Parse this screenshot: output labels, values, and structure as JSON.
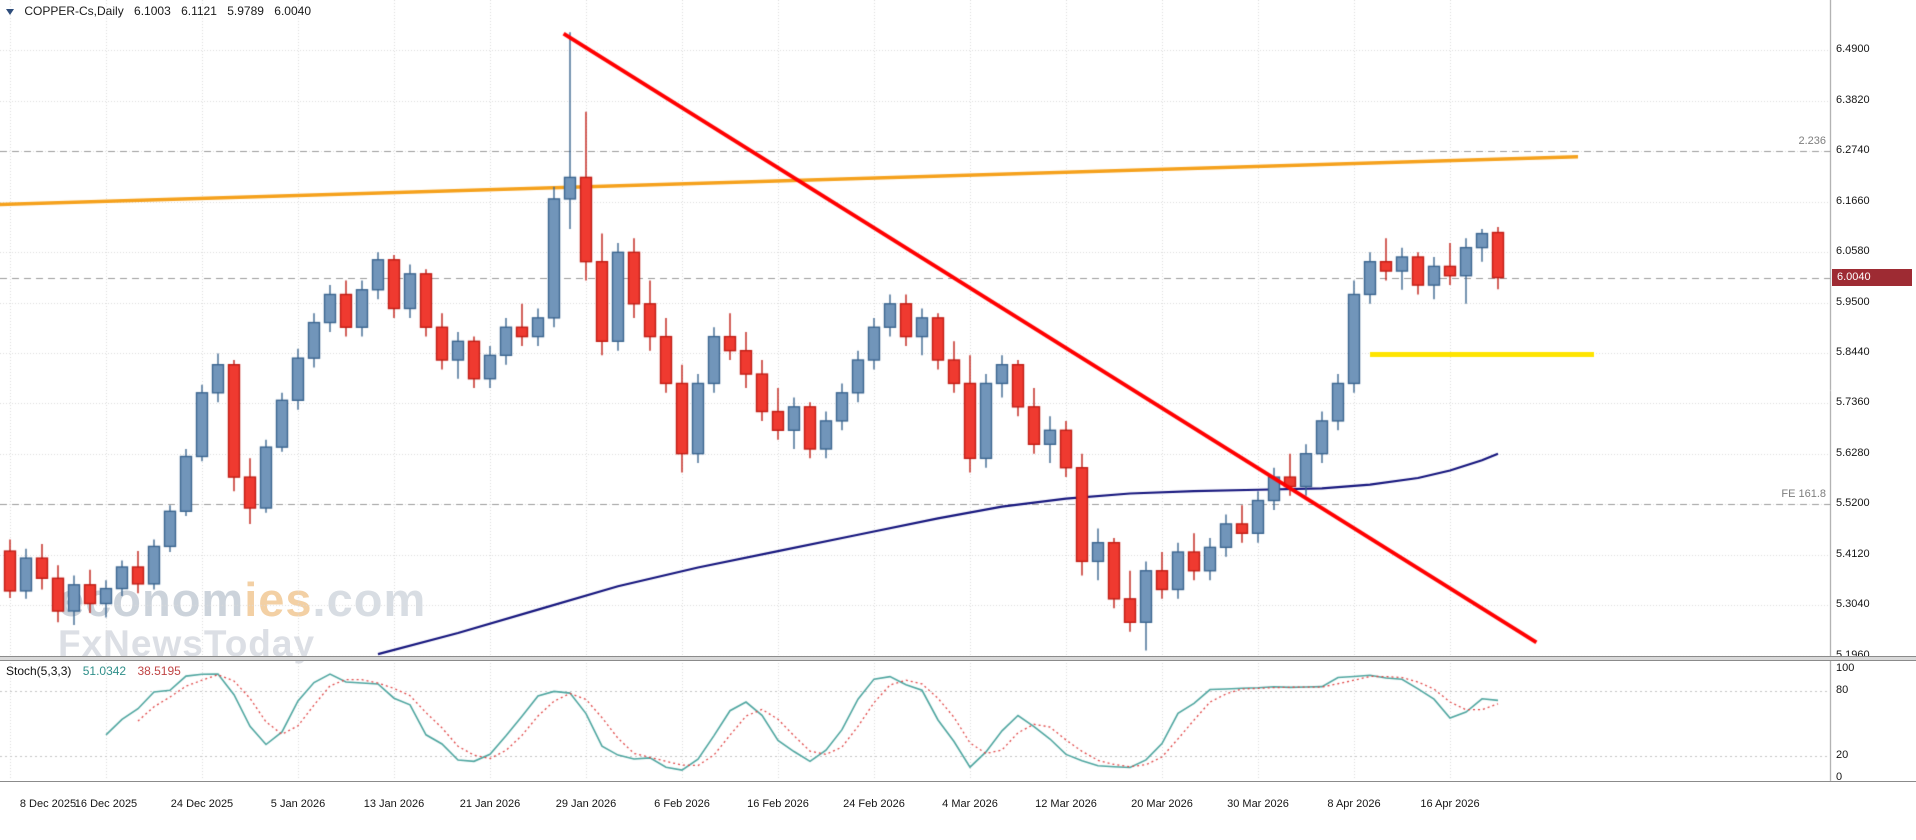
{
  "header": {
    "icon": "triangle-down",
    "title": "COPPER-Cs,Daily",
    "open": "6.1003",
    "high": "6.1121",
    "low": "5.9789",
    "close": "6.0040"
  },
  "watermark": {
    "part1": "econom",
    "part2": "ies",
    "part3": ".com",
    "line2": "FxNewsToday"
  },
  "indicator_panel": {
    "label": "Stoch(5,3,3)",
    "value_main": "51.0342",
    "value_signal": "38.5195",
    "axis_labels": [
      "100",
      "80",
      "20",
      "0"
    ],
    "levels": [
      80,
      20
    ]
  },
  "chart_data": {
    "type": "candlestick",
    "title": "COPPER-Cs,Daily",
    "symbol": "COPPER-Cs",
    "timeframe": "Daily",
    "y_axis": {
      "min": 5.196,
      "max": 6.49,
      "tick_step": 0.108
    },
    "y_ticks": [
      "6.4900",
      "6.3820",
      "6.2740",
      "6.1660",
      "6.0580",
      "5.9500",
      "5.8440",
      "5.7360",
      "5.6280",
      "5.5200",
      "5.4120",
      "5.3040",
      "5.1960"
    ],
    "x_ticks": [
      {
        "bar": 0,
        "label": "8 Dec 2025"
      },
      {
        "bar": 6,
        "label": "16 Dec 2025"
      },
      {
        "bar": 12,
        "label": "24 Dec 2025"
      },
      {
        "bar": 18,
        "label": "5 Jan 2026"
      },
      {
        "bar": 24,
        "label": "13 Jan 2026"
      },
      {
        "bar": 30,
        "label": "21 Jan 2026"
      },
      {
        "bar": 36,
        "label": "29 Jan 2026"
      },
      {
        "bar": 42,
        "label": "6 Feb 2026"
      },
      {
        "bar": 48,
        "label": "16 Feb 2026"
      },
      {
        "bar": 54,
        "label": "24 Feb 2026"
      },
      {
        "bar": 60,
        "label": "4 Mar 2026"
      },
      {
        "bar": 66,
        "label": "12 Mar 2026"
      },
      {
        "bar": 72,
        "label": "20 Mar 2026"
      },
      {
        "bar": 78,
        "label": "30 Mar 2026"
      },
      {
        "bar": 84,
        "label": "8 Apr 2026"
      },
      {
        "bar": 90,
        "label": "16 Apr 2026"
      }
    ],
    "current_price": 6.004,
    "current_price_label": "6.0040",
    "last_ohlc": {
      "open": 6.1003,
      "high": 6.1121,
      "low": 5.9789,
      "close": 6.004
    },
    "levels": [
      {
        "label": "2.236",
        "price": 6.274
      },
      {
        "label": "FE 161.8",
        "price": 5.52
      }
    ],
    "ohlc": [
      [
        5.42,
        5.445,
        5.32,
        5.335
      ],
      [
        5.335,
        5.425,
        5.318,
        5.405
      ],
      [
        5.405,
        5.435,
        5.338,
        5.362
      ],
      [
        5.362,
        5.39,
        5.268,
        5.292
      ],
      [
        5.292,
        5.368,
        5.262,
        5.348
      ],
      [
        5.348,
        5.38,
        5.288,
        5.308
      ],
      [
        5.308,
        5.358,
        5.278,
        5.34
      ],
      [
        5.34,
        5.4,
        5.324,
        5.386
      ],
      [
        5.386,
        5.42,
        5.33,
        5.35
      ],
      [
        5.35,
        5.445,
        5.338,
        5.43
      ],
      [
        5.43,
        5.518,
        5.418,
        5.505
      ],
      [
        5.505,
        5.638,
        5.495,
        5.622
      ],
      [
        5.622,
        5.775,
        5.612,
        5.758
      ],
      [
        5.758,
        5.842,
        5.738,
        5.818
      ],
      [
        5.818,
        5.828,
        5.548,
        5.578
      ],
      [
        5.578,
        5.618,
        5.478,
        5.512
      ],
      [
        5.512,
        5.658,
        5.502,
        5.642
      ],
      [
        5.642,
        5.758,
        5.632,
        5.742
      ],
      [
        5.742,
        5.852,
        5.722,
        5.832
      ],
      [
        5.832,
        5.928,
        5.812,
        5.908
      ],
      [
        5.908,
        5.988,
        5.888,
        5.968
      ],
      [
        5.968,
        5.998,
        5.878,
        5.898
      ],
      [
        5.898,
        5.998,
        5.878,
        5.978
      ],
      [
        5.978,
        6.058,
        5.958,
        6.042
      ],
      [
        6.042,
        6.052,
        5.918,
        5.938
      ],
      [
        5.938,
        6.032,
        5.918,
        6.012
      ],
      [
        6.012,
        6.022,
        5.878,
        5.898
      ],
      [
        5.898,
        5.928,
        5.808,
        5.828
      ],
      [
        5.828,
        5.888,
        5.788,
        5.868
      ],
      [
        5.868,
        5.878,
        5.768,
        5.788
      ],
      [
        5.788,
        5.858,
        5.768,
        5.838
      ],
      [
        5.838,
        5.918,
        5.818,
        5.898
      ],
      [
        5.898,
        5.948,
        5.858,
        5.878
      ],
      [
        5.878,
        5.938,
        5.858,
        5.918
      ],
      [
        5.918,
        6.198,
        5.898,
        6.172
      ],
      [
        6.172,
        6.528,
        6.108,
        6.218
      ],
      [
        6.218,
        6.358,
        5.998,
        6.038
      ],
      [
        6.038,
        6.098,
        5.838,
        5.868
      ],
      [
        5.868,
        6.078,
        5.848,
        6.058
      ],
      [
        6.058,
        6.088,
        5.918,
        5.948
      ],
      [
        5.948,
        5.998,
        5.848,
        5.878
      ],
      [
        5.878,
        5.918,
        5.758,
        5.778
      ],
      [
        5.778,
        5.818,
        5.588,
        5.628
      ],
      [
        5.628,
        5.798,
        5.608,
        5.778
      ],
      [
        5.778,
        5.898,
        5.758,
        5.878
      ],
      [
        5.878,
        5.928,
        5.828,
        5.848
      ],
      [
        5.848,
        5.888,
        5.768,
        5.798
      ],
      [
        5.798,
        5.828,
        5.698,
        5.718
      ],
      [
        5.718,
        5.768,
        5.658,
        5.678
      ],
      [
        5.678,
        5.748,
        5.638,
        5.728
      ],
      [
        5.728,
        5.738,
        5.618,
        5.638
      ],
      [
        5.638,
        5.718,
        5.618,
        5.698
      ],
      [
        5.698,
        5.778,
        5.678,
        5.758
      ],
      [
        5.758,
        5.848,
        5.738,
        5.828
      ],
      [
        5.828,
        5.918,
        5.808,
        5.898
      ],
      [
        5.898,
        5.968,
        5.878,
        5.948
      ],
      [
        5.948,
        5.968,
        5.858,
        5.878
      ],
      [
        5.878,
        5.938,
        5.838,
        5.918
      ],
      [
        5.918,
        5.928,
        5.808,
        5.828
      ],
      [
        5.828,
        5.868,
        5.758,
        5.778
      ],
      [
        5.778,
        5.838,
        5.588,
        5.618
      ],
      [
        5.618,
        5.798,
        5.598,
        5.778
      ],
      [
        5.778,
        5.838,
        5.748,
        5.818
      ],
      [
        5.818,
        5.828,
        5.708,
        5.728
      ],
      [
        5.728,
        5.768,
        5.628,
        5.648
      ],
      [
        5.648,
        5.708,
        5.608,
        5.678
      ],
      [
        5.678,
        5.698,
        5.578,
        5.598
      ],
      [
        5.598,
        5.628,
        5.368,
        5.398
      ],
      [
        5.398,
        5.468,
        5.358,
        5.438
      ],
      [
        5.438,
        5.448,
        5.298,
        5.318
      ],
      [
        5.318,
        5.378,
        5.248,
        5.268
      ],
      [
        5.268,
        5.398,
        5.208,
        5.378
      ],
      [
        5.378,
        5.418,
        5.318,
        5.338
      ],
      [
        5.338,
        5.438,
        5.318,
        5.418
      ],
      [
        5.418,
        5.458,
        5.358,
        5.378
      ],
      [
        5.378,
        5.448,
        5.358,
        5.428
      ],
      [
        5.428,
        5.498,
        5.408,
        5.478
      ],
      [
        5.478,
        5.518,
        5.438,
        5.458
      ],
      [
        5.458,
        5.548,
        5.438,
        5.528
      ],
      [
        5.528,
        5.598,
        5.508,
        5.578
      ],
      [
        5.578,
        5.628,
        5.538,
        5.558
      ],
      [
        5.558,
        5.648,
        5.538,
        5.628
      ],
      [
        5.628,
        5.718,
        5.608,
        5.698
      ],
      [
        5.698,
        5.798,
        5.678,
        5.778
      ],
      [
        5.778,
        5.998,
        5.758,
        5.968
      ],
      [
        5.968,
        6.058,
        5.948,
        6.038
      ],
      [
        6.038,
        6.088,
        5.998,
        6.018
      ],
      [
        6.018,
        6.068,
        5.978,
        6.048
      ],
      [
        6.048,
        6.058,
        5.968,
        5.988
      ],
      [
        5.988,
        6.048,
        5.958,
        6.028
      ],
      [
        6.028,
        6.078,
        5.988,
        6.008
      ],
      [
        6.008,
        6.088,
        5.948,
        6.068
      ],
      [
        6.068,
        6.108,
        6.038,
        6.098
      ],
      [
        6.1003,
        6.1121,
        5.9789,
        6.004
      ]
    ],
    "overlays": {
      "red_trendline": {
        "from_bar": 34.6,
        "from_price": 6.525,
        "to_bar": 95.4,
        "to_price": 5.225,
        "color": "#ff0000"
      },
      "orange_trendline": {
        "from_bar": -0.7,
        "from_price": 6.16,
        "to_bar": 98.0,
        "to_price": 6.262,
        "color": "#f5a11c"
      },
      "yellow_hline": {
        "price": 5.84,
        "from_bar": 85,
        "to_bar": 99,
        "color": "#ffe400"
      },
      "navy_ma": {
        "color": "#15157d",
        "points": [
          [
            23,
            5.2
          ],
          [
            28,
            5.245
          ],
          [
            33,
            5.295
          ],
          [
            38,
            5.345
          ],
          [
            43,
            5.385
          ],
          [
            48,
            5.42
          ],
          [
            53,
            5.455
          ],
          [
            58,
            5.49
          ],
          [
            62,
            5.515
          ],
          [
            66,
            5.532
          ],
          [
            70,
            5.543
          ],
          [
            74,
            5.548
          ],
          [
            78,
            5.551
          ],
          [
            82,
            5.554
          ],
          [
            85,
            5.562
          ],
          [
            88,
            5.576
          ],
          [
            90,
            5.592
          ],
          [
            92,
            5.614
          ],
          [
            93,
            5.628
          ]
        ]
      }
    },
    "colors": {
      "bull_fill": "#7195ba",
      "bull_border": "#3c6690",
      "bear_fill": "#ef3a30",
      "bear_border": "#c11d15",
      "grid": "#dcdcdc",
      "level_dash": "#9b9b9b",
      "badge_bg": "#9e2b33"
    },
    "stochastic": {
      "k": 5,
      "d": 3,
      "slowing": 3,
      "main_color": "#4fa6a0",
      "signal_color": "#e04848"
    }
  }
}
